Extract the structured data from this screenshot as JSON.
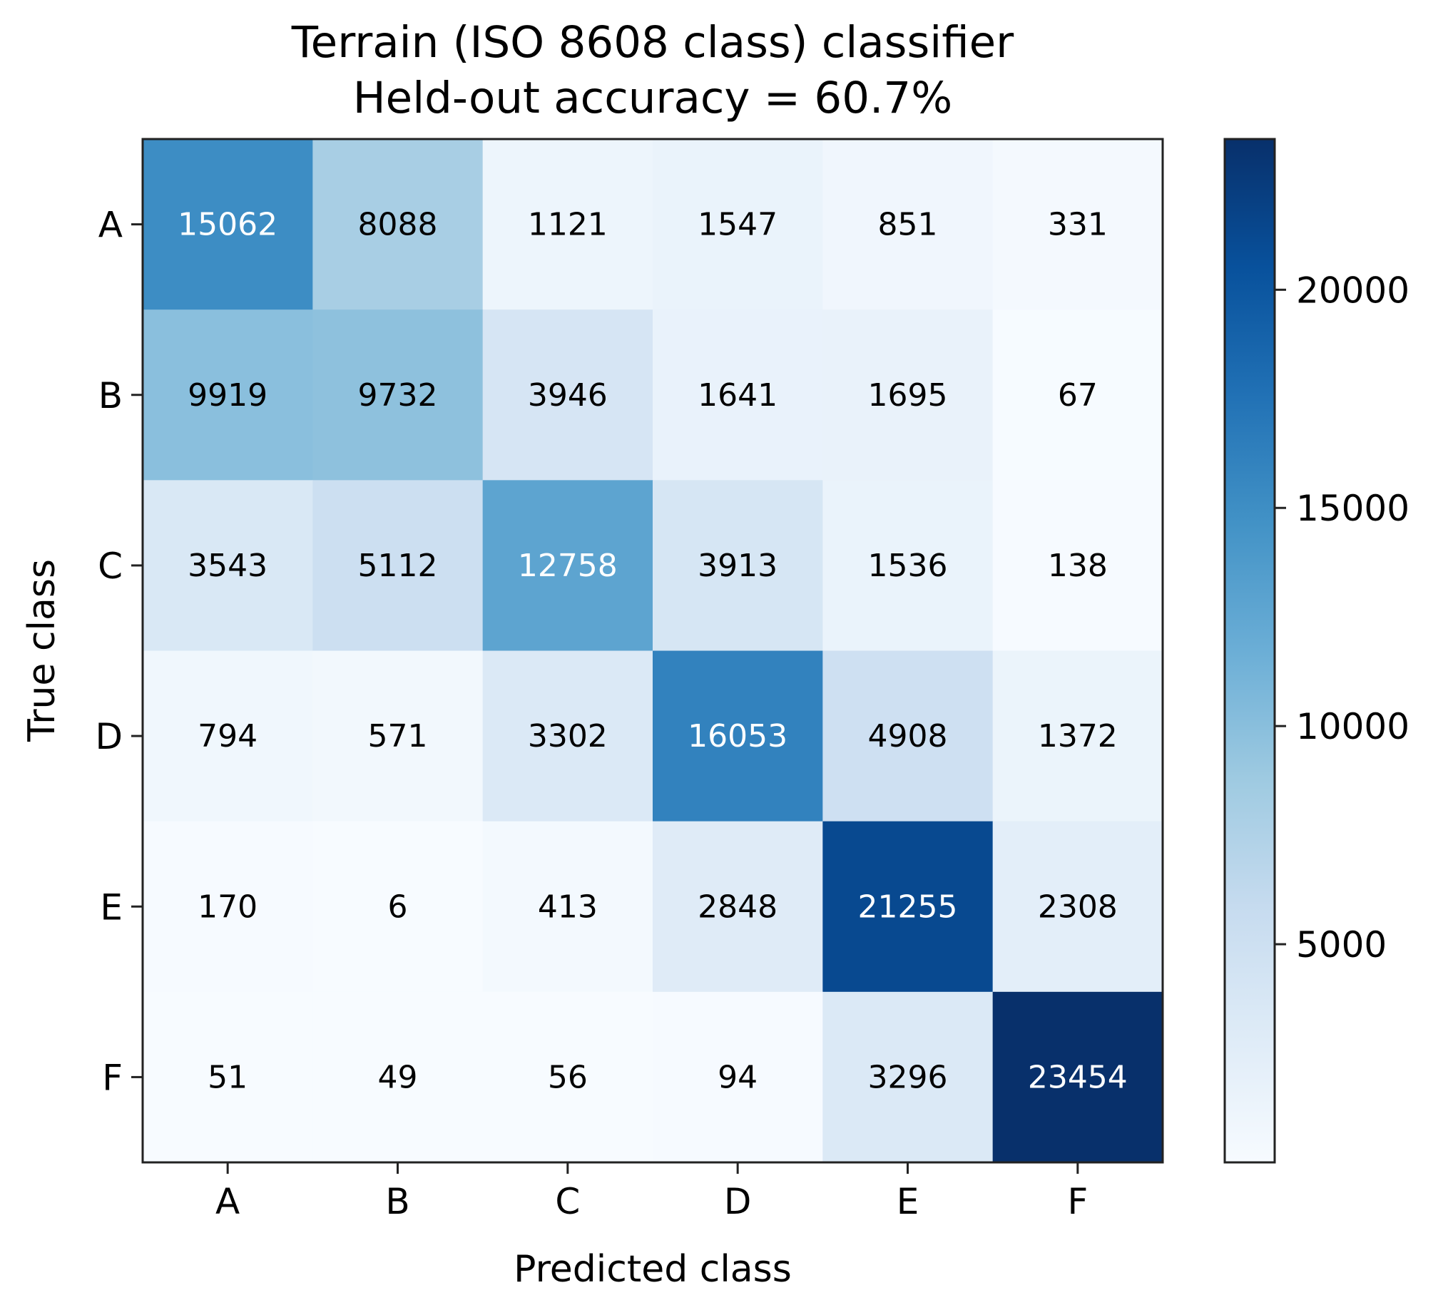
{
  "chart_data": {
    "type": "heatmap",
    "title": "Terrain (ISO 8608 class) classifier",
    "subtitle": "Held-out accuracy = 60.7%",
    "xlabel": "Predicted class",
    "ylabel": "True class",
    "x_categories": [
      "A",
      "B",
      "C",
      "D",
      "E",
      "F"
    ],
    "y_categories": [
      "A",
      "B",
      "C",
      "D",
      "E",
      "F"
    ],
    "values": [
      [
        15062,
        8088,
        1121,
        1547,
        851,
        331
      ],
      [
        9919,
        9732,
        3946,
        1641,
        1695,
        67
      ],
      [
        3543,
        5112,
        12758,
        3913,
        1536,
        138
      ],
      [
        794,
        571,
        3302,
        16053,
        4908,
        1372
      ],
      [
        170,
        6,
        413,
        2848,
        21255,
        2308
      ],
      [
        51,
        49,
        56,
        94,
        3296,
        23454
      ]
    ],
    "colormap": "Blues",
    "color_range": [
      0,
      23454
    ],
    "colorbar": {
      "ticks": [
        5000,
        10000,
        15000,
        20000
      ],
      "tick_labels": [
        "5000",
        "10000",
        "15000",
        "20000"
      ]
    },
    "text_color_light": "#ffffff",
    "text_color_dark": "#000000"
  }
}
